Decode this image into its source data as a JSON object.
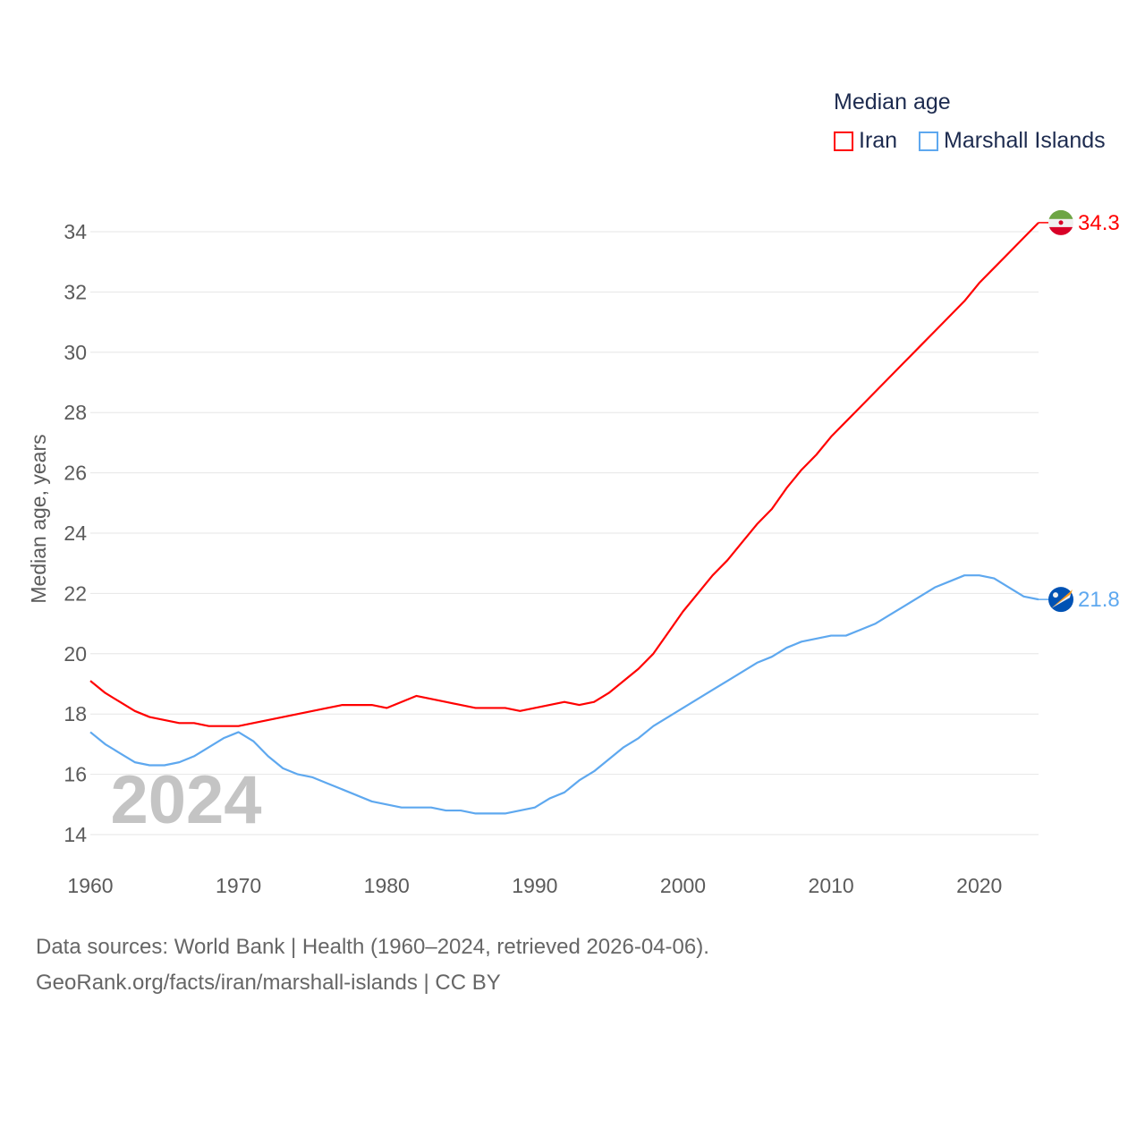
{
  "chart_data": {
    "type": "line",
    "title": "Median age",
    "xlabel": "",
    "ylabel": "Median age, years",
    "xlim": [
      1960,
      2024
    ],
    "ylim": [
      14,
      34
    ],
    "x_ticks": [
      1960,
      1970,
      1980,
      1990,
      2000,
      2010,
      2020
    ],
    "y_ticks": [
      14,
      16,
      18,
      20,
      22,
      24,
      26,
      28,
      30,
      32,
      34
    ],
    "grid": true,
    "legend_placement": "top-right",
    "year_watermark": "2024",
    "x": [
      1960,
      1961,
      1962,
      1963,
      1964,
      1965,
      1966,
      1967,
      1968,
      1969,
      1970,
      1971,
      1972,
      1973,
      1974,
      1975,
      1976,
      1977,
      1978,
      1979,
      1980,
      1981,
      1982,
      1983,
      1984,
      1985,
      1986,
      1987,
      1988,
      1989,
      1990,
      1991,
      1992,
      1993,
      1994,
      1995,
      1996,
      1997,
      1998,
      1999,
      2000,
      2001,
      2002,
      2003,
      2004,
      2005,
      2006,
      2007,
      2008,
      2009,
      2010,
      2011,
      2012,
      2013,
      2014,
      2015,
      2016,
      2017,
      2018,
      2019,
      2020,
      2021,
      2022,
      2023,
      2024
    ],
    "series": [
      {
        "name": "Iran",
        "color": "#ff0000",
        "end_label": "34.3",
        "values": [
          19.1,
          18.7,
          18.4,
          18.1,
          17.9,
          17.8,
          17.7,
          17.7,
          17.6,
          17.6,
          17.6,
          17.7,
          17.8,
          17.9,
          18.0,
          18.1,
          18.2,
          18.3,
          18.3,
          18.3,
          18.2,
          18.4,
          18.6,
          18.5,
          18.4,
          18.3,
          18.2,
          18.2,
          18.2,
          18.1,
          18.2,
          18.3,
          18.4,
          18.3,
          18.4,
          18.7,
          19.1,
          19.5,
          20.0,
          20.7,
          21.4,
          22.0,
          22.6,
          23.1,
          23.7,
          24.3,
          24.8,
          25.5,
          26.1,
          26.6,
          27.2,
          27.7,
          28.2,
          28.7,
          29.2,
          29.7,
          30.2,
          30.7,
          31.2,
          31.7,
          32.3,
          32.8,
          33.3,
          33.8,
          34.3
        ]
      },
      {
        "name": "Marshall Islands",
        "color": "#5ea8ef",
        "end_label": "21.8",
        "values": [
          17.4,
          17.0,
          16.7,
          16.4,
          16.3,
          16.3,
          16.4,
          16.6,
          16.9,
          17.2,
          17.4,
          17.1,
          16.6,
          16.2,
          16.0,
          15.9,
          15.7,
          15.5,
          15.3,
          15.1,
          15.0,
          14.9,
          14.9,
          14.9,
          14.8,
          14.8,
          14.7,
          14.7,
          14.7,
          14.8,
          14.9,
          15.2,
          15.4,
          15.8,
          16.1,
          16.5,
          16.9,
          17.2,
          17.6,
          17.9,
          18.2,
          18.5,
          18.8,
          19.1,
          19.4,
          19.7,
          19.9,
          20.2,
          20.4,
          20.5,
          20.6,
          20.6,
          20.8,
          21.0,
          21.3,
          21.6,
          21.9,
          22.2,
          22.4,
          22.6,
          22.6,
          22.5,
          22.2,
          21.9,
          21.8
        ]
      }
    ]
  },
  "footer": {
    "line1": "Data sources: World Bank | Health (1960–2024, retrieved 2026-04-06).",
    "line2": "GeoRank.org/facts/iran/marshall-islands | CC BY"
  }
}
